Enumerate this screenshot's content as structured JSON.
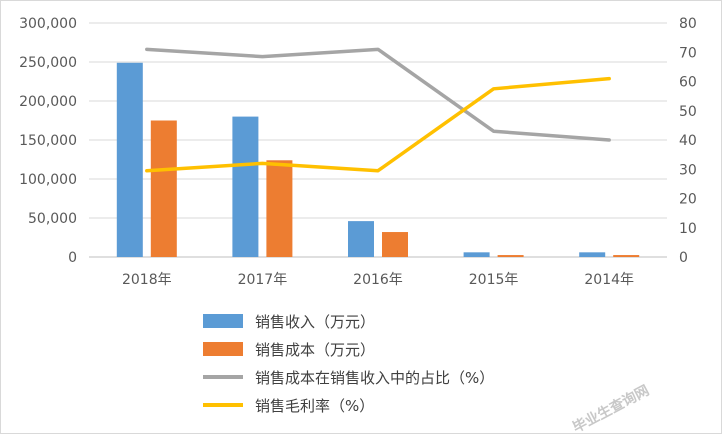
{
  "chart_data": {
    "type": "bar",
    "categories": [
      "2018年",
      "2017年",
      "2016年",
      "2015年",
      "2014年"
    ],
    "series": [
      {
        "name": "销售收入（万元）",
        "type": "bar",
        "axis": "left",
        "color": "#5B9BD5",
        "values": [
          249000,
          180000,
          46000,
          6000,
          6000
        ]
      },
      {
        "name": "销售成本（万元）",
        "type": "bar",
        "axis": "left",
        "color": "#ED7D31",
        "values": [
          175000,
          124000,
          32000,
          2500,
          2500
        ]
      },
      {
        "name": "销售成本在销售收入中的占比（%）",
        "type": "line",
        "axis": "right",
        "color": "#A5A5A5",
        "values": [
          71,
          68.5,
          71,
          43,
          40
        ]
      },
      {
        "name": "销售毛利率（%）",
        "type": "line",
        "axis": "right",
        "color": "#FFC000",
        "values": [
          29.5,
          32,
          29.5,
          57.5,
          61
        ]
      }
    ],
    "y_left": {
      "ylim": [
        0,
        300000
      ],
      "ticks": [
        "0",
        "50,000",
        "100,000",
        "150,000",
        "200,000",
        "250,000",
        "300,000"
      ]
    },
    "y_right": {
      "ylim": [
        0,
        80
      ],
      "ticks": [
        "0",
        "10",
        "20",
        "30",
        "40",
        "50",
        "60",
        "70",
        "80"
      ]
    },
    "grid": true,
    "legend_position": "bottom"
  },
  "watermark": "毕业生查询网"
}
